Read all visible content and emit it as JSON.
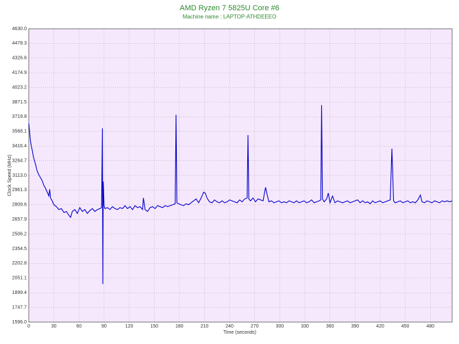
{
  "chart_data": {
    "type": "line",
    "title": "AMD Ryzen 7 5825U Core #6",
    "subtitle": "Machine name : LAPTOP-ATHDEEEO",
    "x_label": "Time (seconds)",
    "y_label": "Clock Speed (MHz)",
    "xlim": [
      0,
      506
    ],
    "ylim": [
      1596,
      4630
    ],
    "xticks": [
      0,
      30,
      60,
      90,
      120,
      150,
      180,
      210,
      240,
      270,
      300,
      330,
      360,
      390,
      420,
      450,
      480
    ],
    "yticks": [
      {
        "value": 1596,
        "label": "1596.0"
      },
      1747.7,
      1899.4,
      2051.1,
      2202.8,
      2354.5,
      2506.2,
      2657.9,
      2809.6,
      2961.3,
      {
        "value": 3113,
        "label": "3113.0"
      },
      3264.7,
      3416.4,
      3568.1,
      3719.8,
      3871.5,
      4023.2,
      4174.9,
      4326.6,
      4478.3,
      {
        "value": 4630,
        "label": "4630.0"
      }
    ],
    "grid": true,
    "background": "#f6e8fc",
    "x": [
      0,
      1,
      2,
      3,
      4,
      5,
      6,
      8,
      10,
      12,
      14,
      16,
      18,
      20,
      22,
      24,
      25,
      26,
      28,
      30,
      33,
      36,
      39,
      42,
      45,
      48,
      50,
      52,
      55,
      58,
      61,
      64,
      67,
      70,
      73,
      76,
      79,
      82,
      85,
      87,
      88,
      88.5,
      89,
      90,
      91,
      94,
      97,
      100,
      103,
      106,
      109,
      112,
      115,
      118,
      121,
      124,
      127,
      130,
      133,
      136,
      137,
      139,
      142,
      145,
      148,
      151,
      154,
      157,
      160,
      163,
      166,
      169,
      172,
      175,
      176,
      177,
      179,
      182,
      185,
      188,
      191,
      194,
      197,
      200,
      203,
      206,
      209,
      211,
      213,
      216,
      219,
      222,
      225,
      228,
      231,
      234,
      237,
      240,
      243,
      246,
      249,
      252,
      255,
      258,
      261,
      262,
      263,
      265,
      268,
      271,
      274,
      277,
      280,
      283,
      285,
      287,
      290,
      293,
      296,
      299,
      302,
      305,
      308,
      311,
      314,
      317,
      320,
      323,
      326,
      329,
      332,
      335,
      338,
      341,
      344,
      347,
      349,
      350,
      351,
      353,
      356,
      358,
      360,
      363,
      366,
      369,
      372,
      375,
      378,
      381,
      384,
      387,
      390,
      393,
      396,
      399,
      402,
      405,
      408,
      411,
      414,
      417,
      420,
      423,
      426,
      429,
      432,
      434,
      436,
      438,
      441,
      444,
      447,
      450,
      453,
      456,
      459,
      462,
      465,
      468,
      470,
      473,
      476,
      479,
      482,
      485,
      488,
      491,
      494,
      497,
      500,
      503,
      506
    ],
    "series": [
      {
        "name": "Core #6",
        "color": "#0000cc",
        "values": [
          3650,
          3560,
          3470,
          3420,
          3380,
          3330,
          3290,
          3230,
          3160,
          3120,
          3090,
          3060,
          3010,
          2980,
          2940,
          2900,
          2970,
          2880,
          2850,
          2810,
          2790,
          2760,
          2770,
          2730,
          2740,
          2700,
          2680,
          2740,
          2760,
          2720,
          2780,
          2740,
          2760,
          2720,
          2750,
          2770,
          2740,
          2760,
          2770,
          2780,
          3600,
          1990,
          3050,
          2800,
          2770,
          2780,
          2760,
          2790,
          2770,
          2760,
          2780,
          2770,
          2800,
          2770,
          2790,
          2760,
          2800,
          2780,
          2790,
          2760,
          2880,
          2760,
          2740,
          2780,
          2790,
          2770,
          2800,
          2790,
          2780,
          2800,
          2790,
          2800,
          2810,
          2820,
          3740,
          2830,
          2820,
          2810,
          2800,
          2820,
          2810,
          2830,
          2850,
          2870,
          2830,
          2880,
          2940,
          2930,
          2880,
          2840,
          2830,
          2860,
          2840,
          2830,
          2850,
          2830,
          2840,
          2860,
          2850,
          2840,
          2830,
          2860,
          2840,
          2870,
          2880,
          3530,
          2870,
          2850,
          2880,
          2840,
          2870,
          2860,
          2850,
          2990,
          2910,
          2840,
          2850,
          2830,
          2840,
          2850,
          2830,
          2840,
          2830,
          2850,
          2840,
          2830,
          2850,
          2830,
          2840,
          2850,
          2830,
          2840,
          2860,
          2830,
          2840,
          2850,
          2860,
          3840,
          2870,
          2840,
          2870,
          2930,
          2830,
          2900,
          2830,
          2850,
          2840,
          2830,
          2840,
          2850,
          2830,
          2840,
          2850,
          2860,
          2830,
          2850,
          2830,
          2840,
          2820,
          2850,
          2830,
          2840,
          2850,
          2830,
          2840,
          2850,
          2860,
          3390,
          2850,
          2830,
          2840,
          2850,
          2830,
          2840,
          2850,
          2830,
          2840,
          2830,
          2860,
          2910,
          2840,
          2830,
          2850,
          2840,
          2830,
          2850,
          2840,
          2830,
          2850,
          2840,
          2850,
          2840,
          2850
        ]
      }
    ]
  }
}
